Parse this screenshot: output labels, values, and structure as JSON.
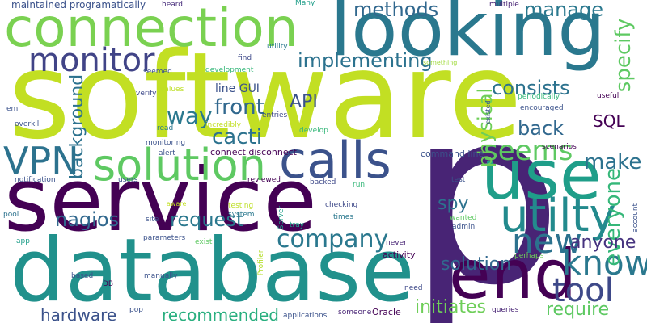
{
  "words": [
    {
      "text": "software",
      "color": "#c2df23"
    },
    {
      "text": "service",
      "color": "#440154"
    },
    {
      "text": "p",
      "color": "#482475"
    },
    {
      "text": "database",
      "color": "#21918c"
    },
    {
      "text": "looking",
      "color": "#2a788e"
    },
    {
      "text": "connection",
      "color": "#7ad151"
    },
    {
      "text": "use",
      "color": "#1f9e89"
    },
    {
      "text": "end",
      "color": "#440154"
    },
    {
      "text": "utilty",
      "color": "#238a8d"
    },
    {
      "text": "calls",
      "color": "#3b528b"
    },
    {
      "text": "solution",
      "color": "#5ec962"
    },
    {
      "text": "VPN",
      "color": "#2c728e"
    },
    {
      "text": "monitor",
      "color": "#414487"
    },
    {
      "text": "know",
      "color": "#2a788e"
    },
    {
      "text": "tool",
      "color": "#3e4989"
    },
    {
      "text": "new",
      "color": "#2c728e"
    },
    {
      "text": "company",
      "color": "#2a788e"
    },
    {
      "text": "seems",
      "color": "#5ec962"
    },
    {
      "text": "way",
      "color": "#2a788e"
    },
    {
      "text": "make",
      "color": "#2c728e"
    },
    {
      "text": "everyone",
      "color": "#35b779"
    },
    {
      "text": "specify",
      "color": "#5ec962"
    },
    {
      "text": "manage",
      "color": "#2a788e"
    },
    {
      "text": "methods",
      "color": "#31688e"
    },
    {
      "text": "implementing",
      "color": "#2c728e"
    },
    {
      "text": "consists",
      "color": "#2c728e"
    },
    {
      "text": "physical",
      "color": "#6ece58"
    },
    {
      "text": "front",
      "color": "#31688e"
    },
    {
      "text": "API",
      "color": "#3b528b"
    },
    {
      "text": "back",
      "color": "#31688e"
    },
    {
      "text": "SQL",
      "color": "#440154"
    },
    {
      "text": "cacti",
      "color": "#2c728e"
    },
    {
      "text": "background",
      "color": "#2c728e"
    },
    {
      "text": "spy",
      "color": "#2c728e"
    },
    {
      "text": "request",
      "color": "#2a788e"
    },
    {
      "text": "nagios",
      "color": "#31688e"
    },
    {
      "text": "anyone",
      "color": "#46337f"
    },
    {
      "text": "solution",
      "color": "#31688e"
    },
    {
      "text": "hardware",
      "color": "#3b528b"
    },
    {
      "text": "recommended",
      "color": "#29af7f"
    },
    {
      "text": "initiates",
      "color": "#6ece58"
    },
    {
      "text": "require",
      "color": "#5ec962"
    },
    {
      "text": "line GUI",
      "color": "#3b528b"
    },
    {
      "text": "maintained programatically",
      "color": "#3b528b"
    },
    {
      "text": "heard",
      "color": "#472d7b"
    },
    {
      "text": "Many",
      "color": "#1f9e89"
    },
    {
      "text": "multiple",
      "color": "#482475"
    },
    {
      "text": "find",
      "color": "#3e4989"
    },
    {
      "text": "utility",
      "color": "#2a788e"
    },
    {
      "text": "something",
      "color": "#9fda3a"
    },
    {
      "text": "seemed",
      "color": "#3b528b"
    },
    {
      "text": "development",
      "color": "#35b779"
    },
    {
      "text": "values",
      "color": "#bddf26"
    },
    {
      "text": "verify",
      "color": "#3e4989"
    },
    {
      "text": "em",
      "color": "#3b528b"
    },
    {
      "text": "overkill",
      "color": "#3b528b"
    },
    {
      "text": "read",
      "color": "#2a788e"
    },
    {
      "text": "incredibly",
      "color": "#c2df23"
    },
    {
      "text": "entries",
      "color": "#3e4989"
    },
    {
      "text": "develop",
      "color": "#35b779"
    },
    {
      "text": "existed",
      "color": "#3b528b"
    },
    {
      "text": "periodically",
      "color": "#35b779"
    },
    {
      "text": "useful",
      "color": "#440154"
    },
    {
      "text": "encouraged",
      "color": "#3b528b"
    },
    {
      "text": "monitoring",
      "color": "#3b528b"
    },
    {
      "text": "alert",
      "color": "#3b528b"
    },
    {
      "text": "connect disconnect",
      "color": "#440154"
    },
    {
      "text": "command line",
      "color": "#3b528b"
    },
    {
      "text": "scenarios",
      "color": "#440154"
    },
    {
      "text": "notification",
      "color": "#3b528b"
    },
    {
      "text": "users",
      "color": "#3b528b"
    },
    {
      "text": "reviewed",
      "color": "#440154"
    },
    {
      "text": "backed",
      "color": "#3e4989"
    },
    {
      "text": "run",
      "color": "#35b779"
    },
    {
      "text": "test",
      "color": "#3b528b"
    },
    {
      "text": "account",
      "color": "#3b528b"
    },
    {
      "text": "aware",
      "color": "#c2df23"
    },
    {
      "text": "testing",
      "color": "#bddf26"
    },
    {
      "text": "checking",
      "color": "#3e4989"
    },
    {
      "text": "times",
      "color": "#2a788e"
    },
    {
      "text": "wanted",
      "color": "#5ec962"
    },
    {
      "text": "admin",
      "color": "#3b528b"
    },
    {
      "text": "pool",
      "color": "#2c728e"
    },
    {
      "text": "site",
      "color": "#3b528b"
    },
    {
      "text": "system",
      "color": "#2a788e"
    },
    {
      "text": "Server",
      "color": "#1f9e89"
    },
    {
      "text": "tray",
      "color": "#1f9e89"
    },
    {
      "text": "never",
      "color": "#482475"
    },
    {
      "text": "app",
      "color": "#1f9e89"
    },
    {
      "text": "parameters",
      "color": "#3b528b"
    },
    {
      "text": "exist",
      "color": "#5ec962"
    },
    {
      "text": "Profiler",
      "color": "#b5de2b"
    },
    {
      "text": "activity",
      "color": "#440154"
    },
    {
      "text": "perhaps",
      "color": "#6ece58"
    },
    {
      "text": "based",
      "color": "#3b528b"
    },
    {
      "text": "manually",
      "color": "#3b528b"
    },
    {
      "text": "DB",
      "color": "#440154"
    },
    {
      "text": "need",
      "color": "#3e4989"
    },
    {
      "text": "pop",
      "color": "#3b528b"
    },
    {
      "text": "applications",
      "color": "#3b528b"
    },
    {
      "text": "someone",
      "color": "#482475"
    },
    {
      "text": "Oracle",
      "color": "#440154"
    },
    {
      "text": "queries",
      "color": "#482475"
    }
  ]
}
